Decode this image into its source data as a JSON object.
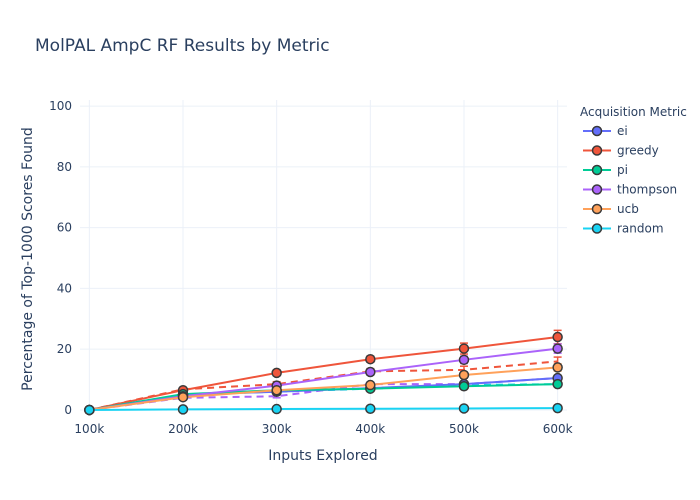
{
  "chart_data": {
    "type": "line",
    "title": "MolPAL AmpC RF Results by Metric",
    "xlabel": "Inputs Explored",
    "ylabel": "Percentage of Top-1000 Scores Found",
    "x": [
      100000,
      200000,
      300000,
      400000,
      500000,
      600000
    ],
    "x_tick_labels": [
      "100k",
      "200k",
      "300k",
      "400k",
      "500k",
      "600k"
    ],
    "ylim": [
      0,
      100
    ],
    "y_ticks": [
      0,
      20,
      40,
      60,
      80,
      100
    ],
    "grid": true,
    "legend_title": "Acquisition Metric",
    "legend_position": "right",
    "series": [
      {
        "name": "ei",
        "color": "#636efa",
        "values": [
          0,
          5.0,
          6.0,
          7.2,
          8.5,
          10.5
        ],
        "error": [
          0,
          0.5,
          0.6,
          0.6,
          0.7,
          0.8
        ]
      },
      {
        "name": "greedy",
        "color": "#ef553b",
        "values": [
          0,
          6.5,
          12.2,
          16.7,
          20.2,
          24.0
        ],
        "error": [
          0,
          0.6,
          0.9,
          1.0,
          1.8,
          2.2
        ]
      },
      {
        "name": "pi",
        "color": "#00cc96",
        "values": [
          0,
          5.2,
          6.5,
          7.0,
          7.8,
          8.5
        ],
        "error": [
          0,
          0.5,
          0.6,
          0.5,
          0.6,
          0.7
        ]
      },
      {
        "name": "thompson",
        "color": "#ab63fa",
        "values": [
          0,
          4.5,
          8.0,
          12.5,
          16.5,
          20.2
        ],
        "error": [
          0,
          0.5,
          0.8,
          1.0,
          1.2,
          1.5
        ]
      },
      {
        "name": "ucb",
        "color": "#ffa15a",
        "values": [
          0,
          4.2,
          6.5,
          8.2,
          11.5,
          14.0
        ],
        "error": [
          0,
          0.5,
          0.6,
          0.8,
          1.0,
          1.2
        ]
      },
      {
        "name": "random",
        "color": "#19d3f3",
        "values": [
          0,
          0.2,
          0.3,
          0.4,
          0.5,
          0.6
        ],
        "error": [
          0,
          0.05,
          0.05,
          0.05,
          0.05,
          0.05
        ]
      }
    ],
    "dashed_series": [
      {
        "color": "#ef553b",
        "values": [
          0,
          6.8,
          8.5,
          12.7,
          13.2,
          16.0
        ],
        "error": [
          0,
          0.5,
          0.8,
          0.9,
          1.2,
          1.4
        ]
      },
      {
        "color": "#19d3f3",
        "values": [
          0,
          5.0,
          6.0,
          7.0,
          8.2,
          8.5
        ],
        "error": [
          0,
          0.4,
          0.5,
          0.5,
          0.6,
          0.7
        ]
      },
      {
        "color": "#ab63fa",
        "values": [
          0,
          4.0,
          4.5,
          8.5,
          8.5,
          10.5
        ],
        "error": [
          0,
          0.4,
          0.5,
          0.6,
          0.7,
          0.8
        ]
      }
    ]
  }
}
